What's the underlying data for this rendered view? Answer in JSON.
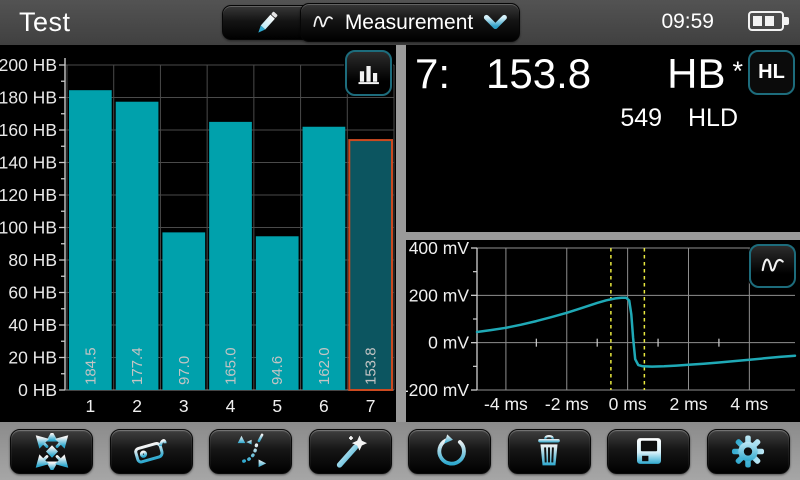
{
  "header": {
    "title": "Test",
    "dropdown": {
      "label": "Measurement",
      "icon": "waveform-icon"
    },
    "time": "09:59"
  },
  "value_panel": {
    "reading_index": "7:",
    "value": "153.8",
    "unit": "HB",
    "flag": "*",
    "scale_button": "HL",
    "secondary_value": "549",
    "secondary_unit": "HLD"
  },
  "toolbar": {
    "buttons": [
      {
        "name": "spread-button",
        "icon": "spread-arrows-icon"
      },
      {
        "name": "tag-button",
        "icon": "tag-icon"
      },
      {
        "name": "conversion-button",
        "icon": "conversion-curve-icon"
      },
      {
        "name": "wand-button",
        "icon": "magic-wand-icon"
      },
      {
        "name": "reset-button",
        "icon": "reset-icon"
      },
      {
        "name": "delete-button",
        "icon": "trash-icon"
      },
      {
        "name": "save-button",
        "icon": "save-icon"
      },
      {
        "name": "settings-button",
        "icon": "gear-icon"
      }
    ]
  },
  "colors": {
    "accent": "#35aed4",
    "bar": "#00a1ac",
    "selected_fill": "#0c5560",
    "selected_border": "#cc4a20",
    "curve": "#1fa9b6",
    "cursor": "#e9e93f"
  },
  "chart_data": [
    {
      "type": "bar",
      "categories": [
        "1",
        "2",
        "3",
        "4",
        "5",
        "6",
        "7"
      ],
      "values": [
        184.5,
        177.4,
        97.0,
        165.0,
        94.6,
        162.0,
        153.8
      ],
      "value_labels": [
        "184.5",
        "177.4",
        "97.0",
        "165.0",
        "94.6",
        "162.0",
        "153.8"
      ],
      "unit": "HB",
      "ylim": [
        0,
        200
      ],
      "ytick_step": 20,
      "selected_index": 6,
      "grid": true,
      "legend": false
    },
    {
      "type": "line",
      "unit_y": "mV",
      "unit_x": "ms",
      "ylim": [
        -200,
        400
      ],
      "yticks": [
        400,
        200,
        0,
        -200
      ],
      "xlim": [
        -4.95,
        5.5
      ],
      "xticks": [
        -4,
        -2,
        0,
        2,
        4
      ],
      "minor_xticks": [
        -3,
        -1,
        1,
        3
      ],
      "cursor_lines_x": [
        -0.55,
        0.55
      ],
      "grid": true,
      "points": [
        [
          -4.95,
          45
        ],
        [
          -4.5,
          53
        ],
        [
          -4,
          63
        ],
        [
          -3.5,
          76
        ],
        [
          -3,
          91
        ],
        [
          -2.5,
          108
        ],
        [
          -2,
          126
        ],
        [
          -1.5,
          147
        ],
        [
          -1,
          168
        ],
        [
          -0.7,
          179
        ],
        [
          -0.4,
          187
        ],
        [
          -0.2,
          190
        ],
        [
          -0.05,
          190
        ],
        [
          0.05,
          178
        ],
        [
          0.12,
          120
        ],
        [
          0.18,
          20
        ],
        [
          0.25,
          -70
        ],
        [
          0.35,
          -95
        ],
        [
          0.5,
          -100
        ],
        [
          0.8,
          -101
        ],
        [
          1.2,
          -100
        ],
        [
          1.6,
          -97
        ],
        [
          2,
          -93
        ],
        [
          2.5,
          -89
        ],
        [
          3,
          -84
        ],
        [
          3.5,
          -78
        ],
        [
          4,
          -72
        ],
        [
          4.5,
          -66
        ],
        [
          5,
          -60
        ],
        [
          5.5,
          -55
        ]
      ]
    }
  ]
}
